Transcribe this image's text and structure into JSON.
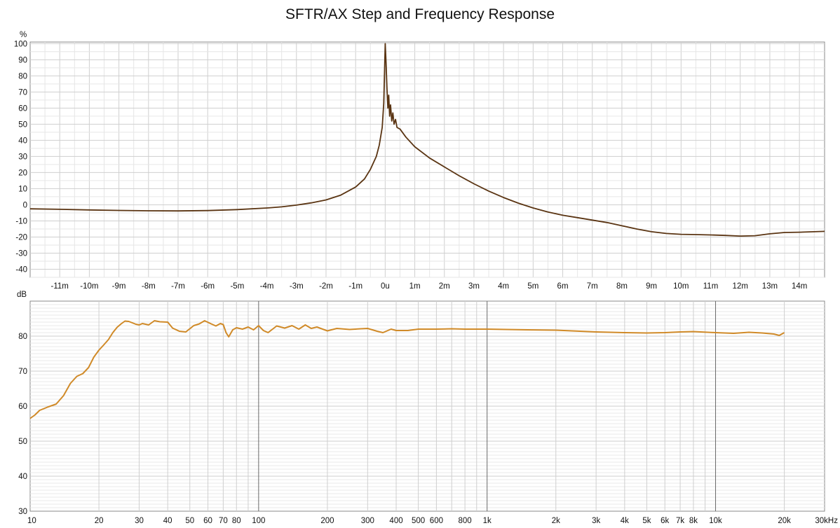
{
  "title": "SFTR/AX Step and Frequency Response",
  "colors": {
    "step_line": "#5a3412",
    "freq_line": "#d08a28",
    "grid": "#d4d4d4",
    "grid_major": "#6a6a6a",
    "frame": "#888888"
  },
  "chart_data": [
    {
      "type": "line",
      "name": "step-response",
      "ylabel": "%",
      "xlim_ms": [
        -12.0,
        14.85
      ],
      "ylim": [
        -45,
        101
      ],
      "x_ticks": [
        {
          "v": -11,
          "label": "-11m"
        },
        {
          "v": -10,
          "label": "-10m"
        },
        {
          "v": -9,
          "label": "-9m"
        },
        {
          "v": -8,
          "label": "-8m"
        },
        {
          "v": -7,
          "label": "-7m"
        },
        {
          "v": -6,
          "label": "-6m"
        },
        {
          "v": -5,
          "label": "-5m"
        },
        {
          "v": -4,
          "label": "-4m"
        },
        {
          "v": -3,
          "label": "-3m"
        },
        {
          "v": -2,
          "label": "-2m"
        },
        {
          "v": -1,
          "label": "-1m"
        },
        {
          "v": 0,
          "label": "0u"
        },
        {
          "v": 1,
          "label": "1m"
        },
        {
          "v": 2,
          "label": "2m"
        },
        {
          "v": 3,
          "label": "3m"
        },
        {
          "v": 4,
          "label": "4m"
        },
        {
          "v": 5,
          "label": "5m"
        },
        {
          "v": 6,
          "label": "6m"
        },
        {
          "v": 7,
          "label": "7m"
        },
        {
          "v": 8,
          "label": "8m"
        },
        {
          "v": 9,
          "label": "9m"
        },
        {
          "v": 10,
          "label": "10m"
        },
        {
          "v": 11,
          "label": "11m"
        },
        {
          "v": 12,
          "label": "12m"
        },
        {
          "v": 13,
          "label": "13m"
        },
        {
          "v": 14,
          "label": "14m"
        }
      ],
      "y_ticks": [
        {
          "v": 100,
          "label": "100"
        },
        {
          "v": 90,
          "label": "90"
        },
        {
          "v": 80,
          "label": "80"
        },
        {
          "v": 70,
          "label": "70"
        },
        {
          "v": 60,
          "label": "60"
        },
        {
          "v": 50,
          "label": "50"
        },
        {
          "v": 40,
          "label": "40"
        },
        {
          "v": 30,
          "label": "30"
        },
        {
          "v": 20,
          "label": "20"
        },
        {
          "v": 10,
          "label": "10"
        },
        {
          "v": 0,
          "label": "0"
        },
        {
          "v": -10,
          "label": "-10"
        },
        {
          "v": -20,
          "label": "-20"
        },
        {
          "v": -30,
          "label": "-30"
        },
        {
          "v": -40,
          "label": "-40"
        }
      ],
      "points": [
        [
          -12.0,
          -2.5
        ],
        [
          -11.0,
          -2.8
        ],
        [
          -10.0,
          -3.2
        ],
        [
          -9.0,
          -3.5
        ],
        [
          -8.0,
          -3.7
        ],
        [
          -7.0,
          -3.8
        ],
        [
          -6.0,
          -3.6
        ],
        [
          -5.0,
          -3.0
        ],
        [
          -4.0,
          -2.0
        ],
        [
          -3.5,
          -1.3
        ],
        [
          -3.0,
          -0.2
        ],
        [
          -2.5,
          1.2
        ],
        [
          -2.0,
          3.0
        ],
        [
          -1.5,
          6.0
        ],
        [
          -1.0,
          11.0
        ],
        [
          -0.7,
          16.0
        ],
        [
          -0.5,
          22.0
        ],
        [
          -0.3,
          30.0
        ],
        [
          -0.2,
          37.0
        ],
        [
          -0.1,
          48.0
        ],
        [
          -0.05,
          63.0
        ],
        [
          0.0,
          100.0
        ],
        [
          0.03,
          88.0
        ],
        [
          0.06,
          72.0
        ],
        [
          0.09,
          60.0
        ],
        [
          0.12,
          68.0
        ],
        [
          0.15,
          55.0
        ],
        [
          0.18,
          62.0
        ],
        [
          0.22,
          52.0
        ],
        [
          0.26,
          57.0
        ],
        [
          0.3,
          50.0
        ],
        [
          0.35,
          53.0
        ],
        [
          0.4,
          48.0
        ],
        [
          0.5,
          47.0
        ],
        [
          0.7,
          42.0
        ],
        [
          1.0,
          36.0
        ],
        [
          1.5,
          29.0
        ],
        [
          2.0,
          23.5
        ],
        [
          2.5,
          18.0
        ],
        [
          3.0,
          13.0
        ],
        [
          3.5,
          8.5
        ],
        [
          4.0,
          4.5
        ],
        [
          4.5,
          1.0
        ],
        [
          5.0,
          -2.0
        ],
        [
          5.5,
          -4.5
        ],
        [
          6.0,
          -6.5
        ],
        [
          6.5,
          -8.0
        ],
        [
          7.0,
          -9.5
        ],
        [
          7.5,
          -11.0
        ],
        [
          8.0,
          -13.0
        ],
        [
          8.5,
          -15.0
        ],
        [
          9.0,
          -16.7
        ],
        [
          9.5,
          -17.8
        ],
        [
          10.0,
          -18.3
        ],
        [
          10.5,
          -18.5
        ],
        [
          11.0,
          -18.7
        ],
        [
          11.5,
          -19.0
        ],
        [
          12.0,
          -19.4
        ],
        [
          12.5,
          -19.2
        ],
        [
          13.0,
          -18.0
        ],
        [
          13.5,
          -17.2
        ],
        [
          14.0,
          -17.0
        ],
        [
          14.85,
          -16.5
        ]
      ]
    },
    {
      "type": "line",
      "name": "frequency-response",
      "ylabel": "dB",
      "x_scale": "log",
      "xlim_hz": [
        10,
        30000
      ],
      "ylim": [
        30,
        90
      ],
      "x_tick_labels": [
        {
          "v": 10,
          "label": "10"
        },
        {
          "v": 20,
          "label": "20"
        },
        {
          "v": 30,
          "label": "30"
        },
        {
          "v": 40,
          "label": "40"
        },
        {
          "v": 50,
          "label": "50"
        },
        {
          "v": 60,
          "label": "60"
        },
        {
          "v": 70,
          "label": "70"
        },
        {
          "v": 80,
          "label": "80"
        },
        {
          "v": 100,
          "label": "100"
        },
        {
          "v": 200,
          "label": "200"
        },
        {
          "v": 300,
          "label": "300"
        },
        {
          "v": 400,
          "label": "400"
        },
        {
          "v": 500,
          "label": "500"
        },
        {
          "v": 600,
          "label": "600"
        },
        {
          "v": 800,
          "label": "800"
        },
        {
          "v": 1000,
          "label": "1k"
        },
        {
          "v": 2000,
          "label": "2k"
        },
        {
          "v": 3000,
          "label": "3k"
        },
        {
          "v": 4000,
          "label": "4k"
        },
        {
          "v": 5000,
          "label": "5k"
        },
        {
          "v": 6000,
          "label": "6k"
        },
        {
          "v": 7000,
          "label": "7k"
        },
        {
          "v": 8000,
          "label": "8k"
        },
        {
          "v": 10000,
          "label": "10k"
        },
        {
          "v": 20000,
          "label": "20k"
        },
        {
          "v": 30000,
          "label": "30kHz"
        }
      ],
      "y_ticks": [
        {
          "v": 80,
          "label": "80"
        },
        {
          "v": 70,
          "label": "70"
        },
        {
          "v": 60,
          "label": "60"
        },
        {
          "v": 50,
          "label": "50"
        },
        {
          "v": 40,
          "label": "40"
        },
        {
          "v": 30,
          "label": "30"
        }
      ],
      "points": [
        [
          10,
          56.5
        ],
        [
          10.5,
          57.5
        ],
        [
          11,
          58.8
        ],
        [
          12,
          59.8
        ],
        [
          13,
          60.6
        ],
        [
          14,
          63.0
        ],
        [
          15,
          66.5
        ],
        [
          16,
          68.5
        ],
        [
          17,
          69.3
        ],
        [
          18,
          71.0
        ],
        [
          19,
          74.0
        ],
        [
          20,
          76.0
        ],
        [
          21,
          77.5
        ],
        [
          22,
          79.0
        ],
        [
          23,
          81.0
        ],
        [
          24,
          82.5
        ],
        [
          25,
          83.5
        ],
        [
          26,
          84.3
        ],
        [
          27,
          84.2
        ],
        [
          28,
          83.8
        ],
        [
          29,
          83.4
        ],
        [
          30,
          83.2
        ],
        [
          31,
          83.6
        ],
        [
          33,
          83.2
        ],
        [
          35,
          84.4
        ],
        [
          37,
          84.1
        ],
        [
          40,
          84.0
        ],
        [
          42,
          82.3
        ],
        [
          45,
          81.4
        ],
        [
          48,
          81.2
        ],
        [
          52,
          83.0
        ],
        [
          55,
          83.5
        ],
        [
          58,
          84.4
        ],
        [
          62,
          83.5
        ],
        [
          65,
          82.9
        ],
        [
          68,
          83.6
        ],
        [
          70,
          83.3
        ],
        [
          72,
          81.0
        ],
        [
          74,
          79.8
        ],
        [
          77,
          81.8
        ],
        [
          80,
          82.4
        ],
        [
          85,
          82.0
        ],
        [
          90,
          82.6
        ],
        [
          95,
          81.8
        ],
        [
          100,
          83.0
        ],
        [
          105,
          81.6
        ],
        [
          110,
          81.0
        ],
        [
          120,
          82.9
        ],
        [
          130,
          82.3
        ],
        [
          140,
          83.0
        ],
        [
          150,
          82.0
        ],
        [
          160,
          83.2
        ],
        [
          170,
          82.2
        ],
        [
          180,
          82.6
        ],
        [
          200,
          81.5
        ],
        [
          220,
          82.2
        ],
        [
          250,
          81.9
        ],
        [
          280,
          82.1
        ],
        [
          300,
          82.2
        ],
        [
          330,
          81.4
        ],
        [
          350,
          81.0
        ],
        [
          380,
          82.0
        ],
        [
          400,
          81.6
        ],
        [
          450,
          81.6
        ],
        [
          500,
          82.0
        ],
        [
          600,
          82.0
        ],
        [
          700,
          82.1
        ],
        [
          800,
          82.0
        ],
        [
          1000,
          82.0
        ],
        [
          1500,
          81.8
        ],
        [
          2000,
          81.7
        ],
        [
          3000,
          81.2
        ],
        [
          4000,
          81.0
        ],
        [
          5000,
          80.9
        ],
        [
          6000,
          81.0
        ],
        [
          7000,
          81.2
        ],
        [
          8000,
          81.3
        ],
        [
          10000,
          81.0
        ],
        [
          12000,
          80.8
        ],
        [
          14000,
          81.1
        ],
        [
          16000,
          80.9
        ],
        [
          18000,
          80.6
        ],
        [
          19000,
          80.2
        ],
        [
          20000,
          81.0
        ]
      ]
    }
  ]
}
